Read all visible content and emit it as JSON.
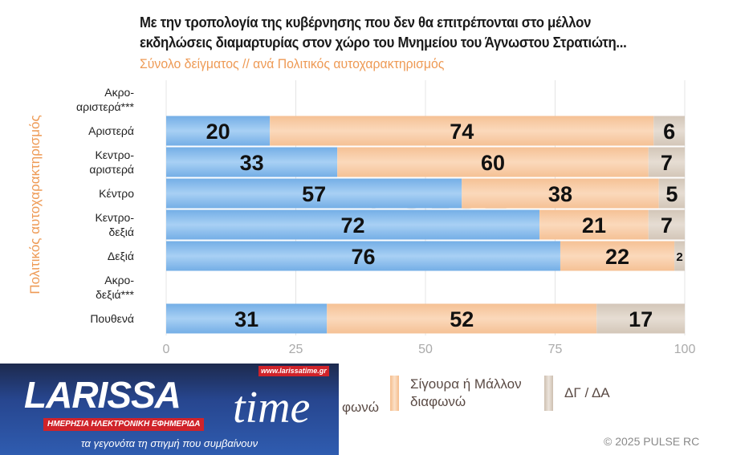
{
  "title_lines": [
    "Με την τροπολογία της κυβέρνησης που δεν θα επιτρέπονται στο μέλλον",
    "εκδηλώσεις διαμαρτυρίας στον χώρο του Μνημείου του Άγνωστου Στρατιώτη..."
  ],
  "subtitle": "Σύνολο δείγματος // ανά Πολιτικός αυτοχαρακτηρισμός",
  "copyright": "©  2025  PULSE RC",
  "watermark": {
    "main": "PULSE",
    "sub": "RESEARCH & CONSULTING"
  },
  "logo": {
    "main": "LARISSA",
    "time": "time",
    "url": "www.larissatime.gr",
    "tagline": "ΗΜΕΡΗΣΙΑ ΗΛΕΚΤΡΟΝΙΚΗ ΕΦΗΜΕΡΙΔΑ",
    "slogan": "τα γεγονότα τη στιγμή που συμβαίνουν"
  },
  "chart_data": {
    "type": "bar",
    "orientation": "horizontal",
    "stacked": true,
    "ylabel": "Πολιτικός αυτοχαρακτηρισμός",
    "xlim": [
      0,
      100
    ],
    "xticks": [
      "0",
      "25",
      "50",
      "75",
      "100"
    ],
    "grid": true,
    "legend_position": "bottom",
    "categories": [
      [
        "Ακρο-",
        "αριστερά***"
      ],
      [
        "Αριστερά"
      ],
      [
        "Κεντρο-",
        "αριστερά"
      ],
      [
        "Κέντρο"
      ],
      [
        "Κεντρο-",
        "δεξιά"
      ],
      [
        "Δεξιά"
      ],
      [
        "Ακρο-",
        "δεξιά***"
      ],
      [
        "Πουθενά"
      ]
    ],
    "series": [
      {
        "name": "φωνώ",
        "color": "#82b9ea",
        "values": [
          null,
          20,
          33,
          57,
          72,
          76,
          null,
          31
        ]
      },
      {
        "name": "Σίγουρα ή Μάλλον διαφωνώ",
        "color": "#f7c8a0",
        "values": [
          null,
          74,
          60,
          38,
          21,
          22,
          null,
          52
        ]
      },
      {
        "name": "ΔΓ / ΔΑ",
        "color": "#d8ccc0",
        "values": [
          null,
          6,
          7,
          5,
          7,
          2,
          null,
          17
        ]
      }
    ]
  }
}
